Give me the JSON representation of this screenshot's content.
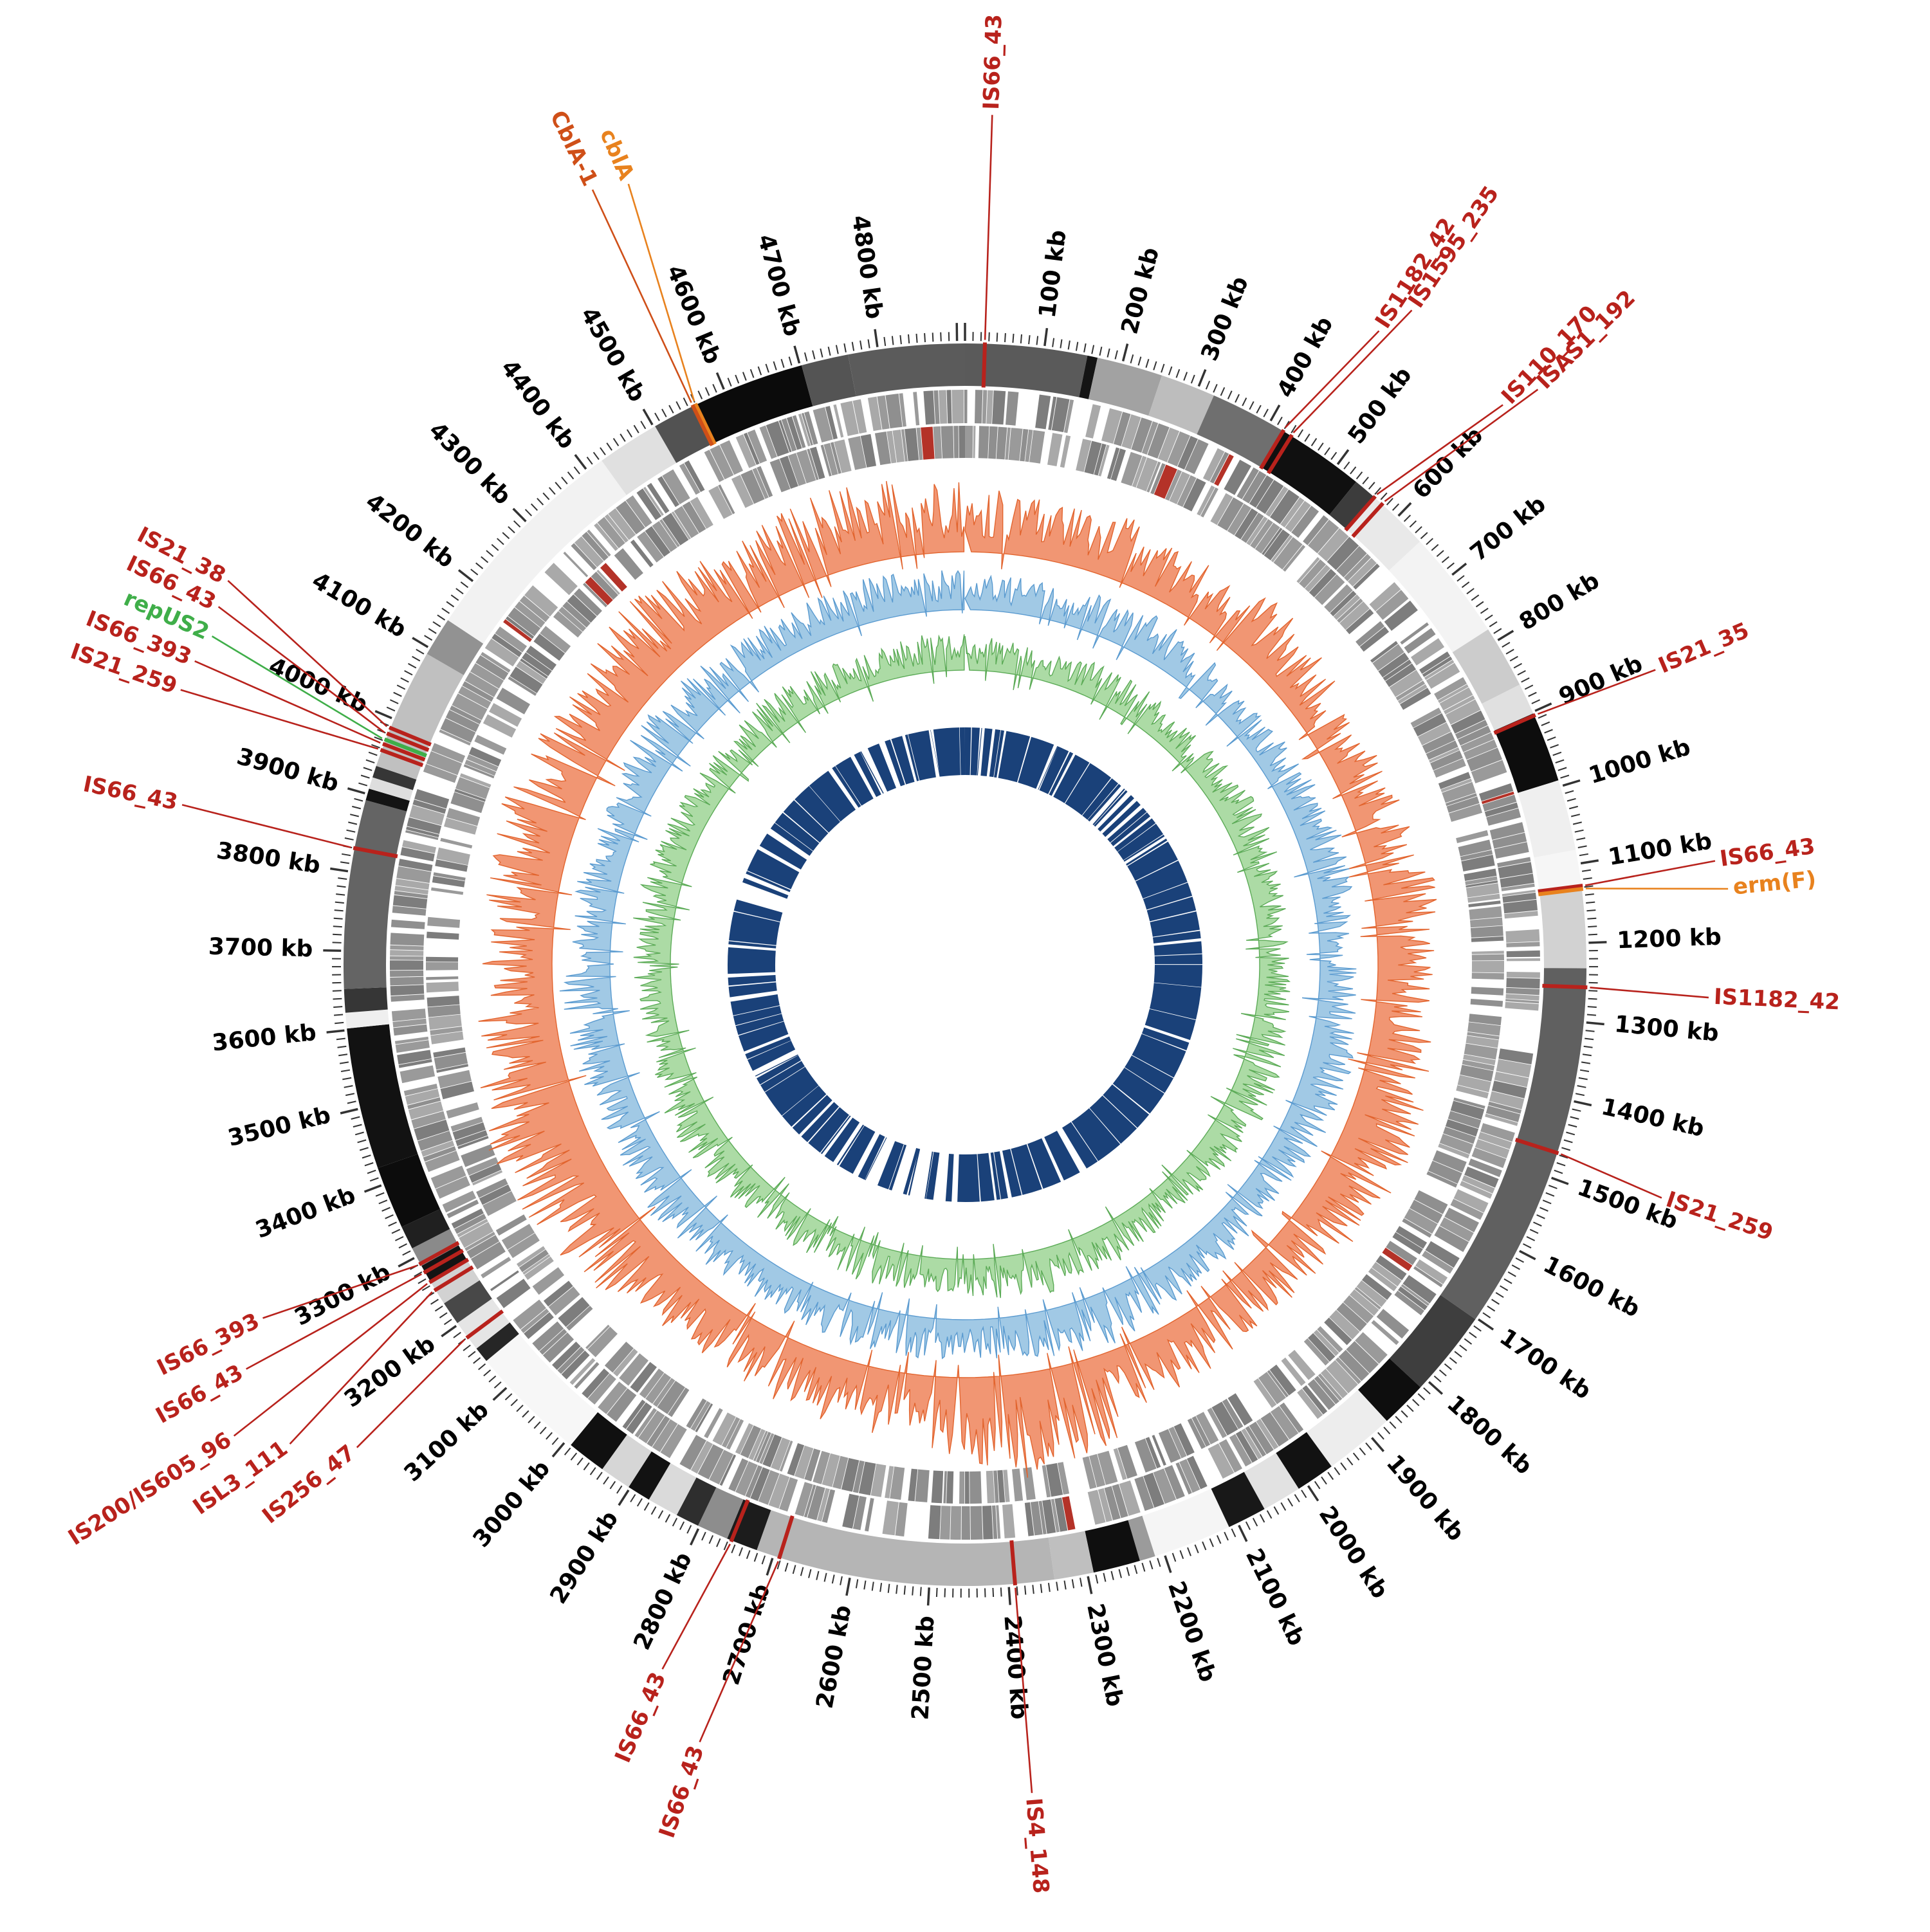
{
  "chart_data": {
    "type": "circos",
    "description": "Circular bacterial genome map with contig ring, gene tracks, GC plots and coverage ring, annotated with insertion-sequence and resistance-gene labels",
    "genome_length_kb": 4910,
    "ticks": {
      "unit": "kb",
      "major_interval_kb": 100,
      "minor_interval_kb": 10,
      "label_values": [
        100,
        200,
        300,
        400,
        500,
        600,
        700,
        800,
        900,
        1000,
        1100,
        1200,
        1300,
        1400,
        1500,
        1600,
        1700,
        1800,
        1900,
        2000,
        2100,
        2200,
        2300,
        2400,
        2500,
        2600,
        2700,
        2800,
        2900,
        3000,
        3100,
        3200,
        3300,
        3400,
        3500,
        3600,
        3700,
        3800,
        3900,
        4000,
        4100,
        4200,
        4300,
        4400,
        4500,
        4600,
        4700,
        4800
      ]
    },
    "contig_segments": [
      [
        0,
        155,
        "#5a5a5a"
      ],
      [
        155,
        168,
        "#141414"
      ],
      [
        168,
        252,
        "#a2a2a2"
      ],
      [
        252,
        322,
        "#bdbdbd"
      ],
      [
        322,
        420,
        "#6f6f6f"
      ],
      [
        420,
        532,
        "#101010"
      ],
      [
        532,
        562,
        "#3c3c3c"
      ],
      [
        562,
        642,
        "#e9e9e9"
      ],
      [
        642,
        782,
        "#f3f3f3"
      ],
      [
        782,
        862,
        "#cccccc"
      ],
      [
        862,
        902,
        "#e0e0e0"
      ],
      [
        902,
        992,
        "#0d0d0d"
      ],
      [
        992,
        1082,
        "#efefef"
      ],
      [
        1082,
        1132,
        "#f6f6f6"
      ],
      [
        1132,
        1232,
        "#d2d2d2"
      ],
      [
        1232,
        1702,
        "#606060"
      ],
      [
        1702,
        1812,
        "#3e3e3e"
      ],
      [
        1812,
        1872,
        "#0e0e0e"
      ],
      [
        1872,
        1962,
        "#ededed"
      ],
      [
        1962,
        2012,
        "#121212"
      ],
      [
        2012,
        2062,
        "#e2e2e2"
      ],
      [
        2062,
        2112,
        "#181818"
      ],
      [
        2112,
        2212,
        "#f5f5f5"
      ],
      [
        2212,
        2232,
        "#9b9b9b"
      ],
      [
        2232,
        2292,
        "#0f0f0f"
      ],
      [
        2292,
        2342,
        "#bfbfbf"
      ],
      [
        2342,
        2722,
        "#b5b5b5"
      ],
      [
        2722,
        2762,
        "#1c1c1c"
      ],
      [
        2762,
        2802,
        "#8d8d8d"
      ],
      [
        2802,
        2832,
        "#2e2e2e"
      ],
      [
        2832,
        2872,
        "#dadada"
      ],
      [
        2872,
        2902,
        "#121212"
      ],
      [
        2902,
        2942,
        "#d6d6d6"
      ],
      [
        2942,
        2992,
        "#101010"
      ],
      [
        2992,
        3142,
        "#f7f7f7"
      ],
      [
        3142,
        3162,
        "#262626"
      ],
      [
        3162,
        3202,
        "#e5e5e5"
      ],
      [
        3202,
        3232,
        "#484848"
      ],
      [
        3232,
        3262,
        "#d2d2d2"
      ],
      [
        3262,
        3287,
        "#141414"
      ],
      [
        3287,
        3312,
        "#8a8a8a"
      ],
      [
        3312,
        3342,
        "#202020"
      ],
      [
        3342,
        3422,
        "#0c0c0c"
      ],
      [
        3422,
        3602,
        "#121212"
      ],
      [
        3602,
        3622,
        "#efefef"
      ],
      [
        3622,
        3652,
        "#363636"
      ],
      [
        3652,
        3892,
        "#646464"
      ],
      [
        3892,
        3907,
        "#141414"
      ],
      [
        3907,
        3922,
        "#dedede"
      ],
      [
        3922,
        3937,
        "#363636"
      ],
      [
        3937,
        4092,
        "#c0c0c0"
      ],
      [
        4092,
        4142,
        "#929292"
      ],
      [
        4142,
        4422,
        "#f2f2f2"
      ],
      [
        4422,
        4502,
        "#e0e0e0"
      ],
      [
        4502,
        4562,
        "#525252"
      ],
      [
        4562,
        4702,
        "#0b0b0b"
      ],
      [
        4702,
        4762,
        "#545454"
      ],
      [
        4762,
        4910,
        "#5b5b5b"
      ]
    ],
    "tracks": {
      "forward_genes": {
        "color": "#8f8f8f",
        "seed": 7
      },
      "reverse_genes": {
        "color": "#8f8f8f",
        "seed": 13
      },
      "gc_content": {
        "color": "#f0906c",
        "stroke": "#e2642e",
        "seed": 101,
        "profile": [
          0.55,
          0.5,
          0.42,
          0.48,
          0.4,
          0.44,
          0.5,
          0.42,
          0.36,
          0.4,
          0.44,
          0.5,
          0.46,
          0.4,
          0.46,
          0.52,
          0.56,
          0.5,
          0.44,
          0.4,
          0.42,
          0.46,
          0.52,
          0.72,
          0.82,
          0.62,
          0.5,
          0.46,
          0.5,
          0.44,
          0.42,
          0.48,
          0.62,
          0.72,
          0.76,
          0.7,
          0.62,
          0.56,
          0.52,
          0.56,
          0.6,
          0.56,
          0.5,
          0.56,
          0.62,
          0.56,
          0.5,
          0.56,
          0.62,
          0.58
        ]
      },
      "coverage_blue": {
        "color": "#9cc6e4",
        "stroke": "#5b9bd0",
        "seed": 202,
        "profile": [
          0.5,
          0.46,
          0.42,
          0.5,
          0.56,
          0.5,
          0.44,
          0.4,
          0.46,
          0.52,
          0.56,
          0.5,
          0.44,
          0.48,
          0.54,
          0.6,
          0.54,
          0.48,
          0.44,
          0.5,
          0.56,
          0.62,
          0.66,
          0.6,
          0.54,
          0.48,
          0.52,
          0.58,
          0.52,
          0.46,
          0.5,
          0.56,
          0.62,
          0.58,
          0.52,
          0.56,
          0.62,
          0.66,
          0.6,
          0.54,
          0.5,
          0.54,
          0.6,
          0.64,
          0.58,
          0.52,
          0.48,
          0.52,
          0.56,
          0.52
        ]
      },
      "gc_skew_green": {
        "color": "#a8d9a0",
        "stroke": "#5cab57",
        "seed": 303,
        "profile": [
          0.5,
          0.44,
          0.4,
          0.46,
          0.52,
          0.48,
          0.42,
          0.46,
          0.52,
          0.56,
          0.5,
          0.44,
          0.4,
          0.44,
          0.5,
          0.56,
          0.6,
          0.54,
          0.48,
          0.44,
          0.48,
          0.54,
          0.6,
          0.64,
          0.58,
          0.52,
          0.46,
          0.5,
          0.56,
          0.5,
          0.44,
          0.48,
          0.54,
          0.6,
          0.56,
          0.5,
          0.46,
          0.5,
          0.56,
          0.6,
          0.54,
          0.48,
          0.44,
          0.48,
          0.54,
          0.58,
          0.52,
          0.46,
          0.5,
          0.54
        ]
      }
    },
    "inner_ring": {
      "color": "#1a4179",
      "seed": 77,
      "gaps": [
        [
          55,
          65
        ],
        [
          90,
          100
        ],
        [
          130,
          137
        ],
        [
          300,
          310
        ],
        [
          370,
          378
        ],
        [
          560,
          575
        ],
        [
          590,
          605
        ],
        [
          620,
          632
        ],
        [
          655,
          663
        ],
        [
          700,
          708
        ],
        [
          780,
          790
        ],
        [
          1140,
          1150
        ],
        [
          1480,
          1490
        ],
        [
          2035,
          2060
        ],
        [
          2120,
          2130
        ],
        [
          2300,
          2312
        ],
        [
          2350,
          2358
        ],
        [
          2480,
          2500
        ],
        [
          2520,
          2560
        ],
        [
          2590,
          2640
        ],
        [
          2660,
          2700
        ],
        [
          2750,
          2790
        ],
        [
          2820,
          2840
        ],
        [
          2900,
          2915
        ],
        [
          2950,
          2960
        ],
        [
          3050,
          3060
        ],
        [
          3300,
          3320
        ],
        [
          3380,
          3390
        ],
        [
          3560,
          3575
        ],
        [
          3640,
          3650
        ],
        [
          3740,
          3750
        ],
        [
          3900,
          3960
        ],
        [
          3975,
          3990
        ],
        [
          4080,
          4090
        ],
        [
          4140,
          4160
        ],
        [
          4430,
          4445
        ],
        [
          4520,
          4530
        ],
        [
          4560,
          4580
        ],
        [
          4620,
          4640
        ],
        [
          4700,
          4710
        ],
        [
          4790,
          4800
        ]
      ]
    },
    "annotations": [
      {
        "text": "IS66_43",
        "kb": 25,
        "label_kb": 25,
        "label_r": 1330,
        "color": "#b8221c"
      },
      {
        "text": "IS1182_42",
        "kb": 420,
        "label_kb": 452,
        "label_r": 1185,
        "color": "#b8221c"
      },
      {
        "text": "IS1595_235",
        "kb": 432,
        "label_kb": 468,
        "label_r": 1240,
        "color": "#b8221c"
      },
      {
        "text": "IS110_170",
        "kb": 562,
        "label_kb": 598,
        "label_r": 1215,
        "color": "#b8221c"
      },
      {
        "text": "ISAS1_192",
        "kb": 575,
        "label_kb": 612,
        "label_r": 1270,
        "color": "#b8221c"
      },
      {
        "text": "IS21_35",
        "kb": 905,
        "label_kb": 912,
        "label_r": 1175,
        "color": "#b8221c"
      },
      {
        "text": "IS66_43",
        "kb": 1128,
        "label_kb": 1120,
        "label_r": 1185,
        "color": "#b8221c"
      },
      {
        "text": "erm(F)",
        "kb": 1132,
        "label_kb": 1150,
        "label_r": 1200,
        "color": "#e8821e"
      },
      {
        "text": "IS1182_42",
        "kb": 1256,
        "label_kb": 1262,
        "label_r": 1165,
        "color": "#b8221c"
      },
      {
        "text": "IS21_259",
        "kb": 1468,
        "label_kb": 1480,
        "label_r": 1150,
        "color": "#b8221c"
      },
      {
        "text": "IS4_148",
        "kb": 2392,
        "label_kb": 2392,
        "label_r": 1300,
        "color": "#b8221c"
      },
      {
        "text": "IS66_43",
        "kb": 2692,
        "label_kb": 2712,
        "label_r": 1285,
        "color": "#b8221c"
      },
      {
        "text": "IS66_43",
        "kb": 2756,
        "label_kb": 2772,
        "label_r": 1200,
        "color": "#b8221c"
      },
      {
        "text": "IS256_47",
        "kb": 3180,
        "label_kb": 3158,
        "label_r": 1215,
        "color": "#b8221c"
      },
      {
        "text": "ISL3_111",
        "kb": 3252,
        "label_kb": 3200,
        "label_r": 1295,
        "color": "#b8221c"
      },
      {
        "text": "IS200/IS605_96",
        "kb": 3264,
        "label_kb": 3235,
        "label_r": 1360,
        "color": "#b8221c"
      },
      {
        "text": "IS66_43",
        "kb": 3278,
        "label_kb": 3282,
        "label_r": 1290,
        "color": "#b8221c"
      },
      {
        "text": "IS66_393",
        "kb": 3290,
        "label_kb": 3318,
        "label_r": 1230,
        "color": "#b8221c"
      },
      {
        "text": "IS66_43",
        "kb": 3830,
        "label_kb": 3840,
        "label_r": 1250,
        "color": "#b8221c"
      },
      {
        "text": "IS21_259",
        "kb": 3958,
        "label_kb": 3946,
        "label_r": 1300,
        "color": "#b8221c"
      },
      {
        "text": "IS66_393",
        "kb": 3966,
        "label_kb": 3976,
        "label_r": 1295,
        "color": "#b8221c"
      },
      {
        "text": "repUS2",
        "kb": 3972,
        "label_kb": 4004,
        "label_r": 1285,
        "color": "#3fae49"
      },
      {
        "text": "IS66_43",
        "kb": 3980,
        "label_kb": 4032,
        "label_r": 1295,
        "color": "#b8221c"
      },
      {
        "text": "IS21_38",
        "kb": 3988,
        "label_kb": 4058,
        "label_r": 1300,
        "color": "#b8221c"
      },
      {
        "text": "cblA",
        "kb": 4560,
        "label_kb": 4592,
        "label_r": 1330,
        "color": "#e8821e"
      },
      {
        "text": "CblA-1",
        "kb": 4556,
        "label_kb": 4560,
        "label_r": 1345,
        "color": "#cf4f18"
      }
    ]
  }
}
